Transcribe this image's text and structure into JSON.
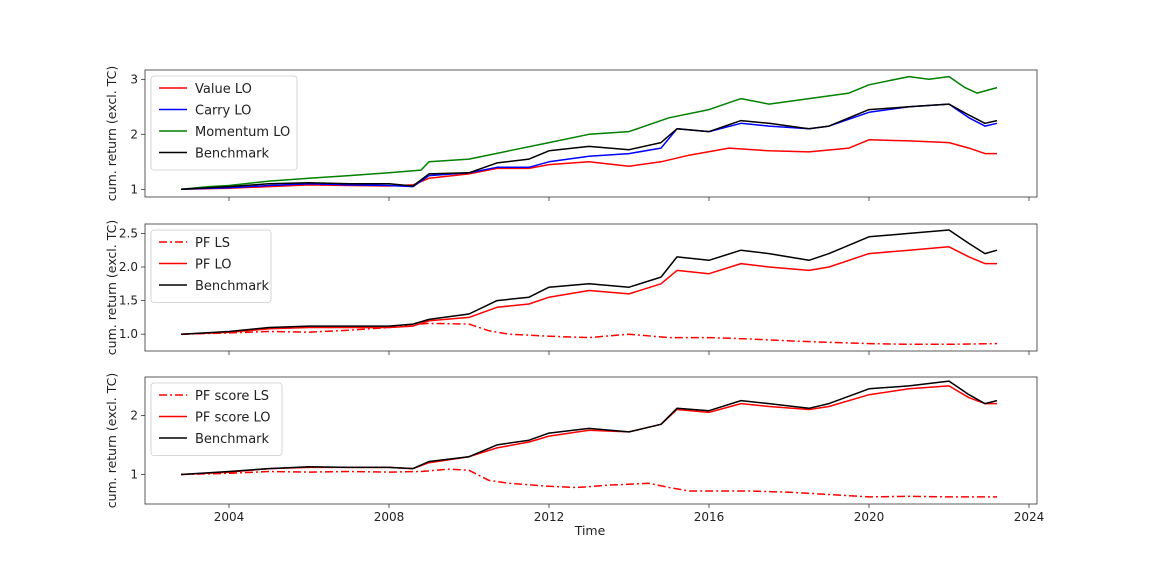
{
  "figure": {
    "xlabel": "Time",
    "x_ticks": [
      2004,
      2008,
      2012,
      2016,
      2020,
      2024
    ]
  },
  "chart_data": [
    {
      "type": "line",
      "ylabel": "cum. return (excl. TC)",
      "xlim": [
        2001.9,
        2024.2
      ],
      "ylim": [
        0.86,
        3.17
      ],
      "y_ticks": [
        1,
        2,
        3
      ],
      "y_tick_labels": [
        "1",
        "2",
        "3"
      ],
      "show_x_tick_labels": false,
      "grid": false,
      "legend": "top-left",
      "series": [
        {
          "name": "Value LO",
          "color": "#ff0000",
          "dash": "solid",
          "x": [
            2002.8,
            2004,
            2005,
            2006,
            2007,
            2008,
            2008.6,
            2009,
            2010,
            2010.7,
            2011.5,
            2012,
            2013,
            2014,
            2014.8,
            2015.5,
            2016.5,
            2017.5,
            2018.5,
            2019.5,
            2020,
            2021,
            2022,
            2022.5,
            2022.9,
            2023.2
          ],
          "y": [
            1.0,
            1.02,
            1.05,
            1.08,
            1.07,
            1.06,
            1.08,
            1.2,
            1.28,
            1.38,
            1.38,
            1.45,
            1.5,
            1.42,
            1.5,
            1.62,
            1.75,
            1.7,
            1.68,
            1.75,
            1.9,
            1.88,
            1.85,
            1.75,
            1.65,
            1.65
          ]
        },
        {
          "name": "Carry LO",
          "color": "#0000ff",
          "dash": "solid",
          "x": [
            2002.8,
            2004,
            2005,
            2006,
            2007,
            2008,
            2008.6,
            2009,
            2010,
            2010.7,
            2011.5,
            2012,
            2013,
            2014,
            2014.8,
            2015.2,
            2016,
            2016.8,
            2017.5,
            2018.5,
            2019,
            2020,
            2021,
            2022,
            2022.5,
            2022.9,
            2023.2
          ],
          "y": [
            1.0,
            1.03,
            1.07,
            1.1,
            1.08,
            1.07,
            1.05,
            1.25,
            1.3,
            1.4,
            1.4,
            1.5,
            1.6,
            1.65,
            1.75,
            2.1,
            2.05,
            2.2,
            2.15,
            2.1,
            2.15,
            2.4,
            2.5,
            2.55,
            2.3,
            2.15,
            2.2
          ]
        },
        {
          "name": "Momentum LO",
          "color": "#008000",
          "dash": "solid",
          "x": [
            2002.8,
            2003.5,
            2004,
            2005,
            2006,
            2007,
            2008,
            2008.8,
            2009,
            2010,
            2011,
            2012,
            2013,
            2014,
            2015,
            2016,
            2016.8,
            2017.5,
            2018.5,
            2019.5,
            2020,
            2021,
            2021.5,
            2022,
            2022.4,
            2022.7,
            2023.2
          ],
          "y": [
            1.0,
            1.05,
            1.07,
            1.15,
            1.2,
            1.25,
            1.3,
            1.35,
            1.5,
            1.55,
            1.7,
            1.85,
            2.0,
            2.05,
            2.3,
            2.45,
            2.65,
            2.55,
            2.65,
            2.75,
            2.9,
            3.05,
            3.0,
            3.05,
            2.85,
            2.75,
            2.85
          ]
        },
        {
          "name": "Benchmark",
          "color": "#000000",
          "dash": "solid",
          "x": [
            2002.8,
            2004,
            2005,
            2006,
            2007,
            2008,
            2008.6,
            2009,
            2010,
            2010.7,
            2011.5,
            2012,
            2013,
            2014,
            2014.8,
            2015.2,
            2016,
            2016.8,
            2017.5,
            2018.5,
            2019,
            2020,
            2021,
            2022,
            2022.5,
            2022.9,
            2023.2
          ],
          "y": [
            1.0,
            1.05,
            1.1,
            1.12,
            1.1,
            1.1,
            1.06,
            1.28,
            1.3,
            1.48,
            1.55,
            1.7,
            1.78,
            1.72,
            1.85,
            2.1,
            2.05,
            2.25,
            2.2,
            2.1,
            2.15,
            2.45,
            2.5,
            2.55,
            2.35,
            2.2,
            2.25
          ]
        }
      ]
    },
    {
      "type": "line",
      "ylabel": "cum. return (excl. TC)",
      "xlim": [
        2001.9,
        2024.2
      ],
      "ylim": [
        0.75,
        2.64
      ],
      "y_ticks": [
        1.0,
        1.5,
        2.0,
        2.5
      ],
      "y_tick_labels": [
        "1.0",
        "1.5",
        "2.0",
        "2.5"
      ],
      "show_x_tick_labels": false,
      "grid": false,
      "legend": "top-left",
      "series": [
        {
          "name": "PF LS",
          "color": "#ff0000",
          "dash": "dashdot",
          "x": [
            2002.8,
            2004,
            2005,
            2006,
            2007,
            2008,
            2008.5,
            2009,
            2010,
            2010.5,
            2011,
            2012,
            2013,
            2014,
            2015,
            2016,
            2017,
            2018,
            2019,
            2020,
            2021,
            2022,
            2023.2
          ],
          "y": [
            1.0,
            1.02,
            1.04,
            1.03,
            1.06,
            1.1,
            1.14,
            1.16,
            1.15,
            1.05,
            1.0,
            0.97,
            0.95,
            1.0,
            0.95,
            0.95,
            0.93,
            0.9,
            0.88,
            0.86,
            0.85,
            0.85,
            0.86
          ]
        },
        {
          "name": "PF LO",
          "color": "#ff0000",
          "dash": "solid",
          "x": [
            2002.8,
            2004,
            2005,
            2006,
            2007,
            2008,
            2008.6,
            2009,
            2010,
            2010.7,
            2011.5,
            2012,
            2013,
            2014,
            2014.8,
            2015.2,
            2016,
            2016.8,
            2017.5,
            2018.5,
            2019,
            2020,
            2021,
            2022,
            2022.5,
            2022.9,
            2023.2
          ],
          "y": [
            1.0,
            1.03,
            1.08,
            1.1,
            1.1,
            1.1,
            1.12,
            1.2,
            1.25,
            1.4,
            1.45,
            1.55,
            1.65,
            1.6,
            1.75,
            1.95,
            1.9,
            2.05,
            2.0,
            1.95,
            2.0,
            2.2,
            2.25,
            2.3,
            2.15,
            2.05,
            2.05
          ]
        },
        {
          "name": "Benchmark",
          "color": "#000000",
          "dash": "solid",
          "x": [
            2002.8,
            2004,
            2005,
            2006,
            2007,
            2008,
            2008.6,
            2009,
            2010,
            2010.7,
            2011.5,
            2012,
            2013,
            2014,
            2014.8,
            2015.2,
            2016,
            2016.8,
            2017.5,
            2018.5,
            2019,
            2020,
            2021,
            2022,
            2022.5,
            2022.9,
            2023.2
          ],
          "y": [
            1.0,
            1.04,
            1.1,
            1.12,
            1.12,
            1.12,
            1.15,
            1.22,
            1.3,
            1.5,
            1.55,
            1.7,
            1.75,
            1.7,
            1.85,
            2.15,
            2.1,
            2.25,
            2.2,
            2.1,
            2.2,
            2.45,
            2.5,
            2.55,
            2.35,
            2.2,
            2.25
          ]
        }
      ]
    },
    {
      "type": "line",
      "ylabel": "cum. return (excl. TC)",
      "xlabel": "Time",
      "xlim": [
        2001.9,
        2024.2
      ],
      "ylim": [
        0.5,
        2.65
      ],
      "y_ticks": [
        1,
        2
      ],
      "y_tick_labels": [
        "1",
        "2"
      ],
      "show_x_tick_labels": true,
      "grid": false,
      "legend": "top-left",
      "series": [
        {
          "name": "PF score LS",
          "color": "#ff0000",
          "dash": "dashdot",
          "x": [
            2002.8,
            2004,
            2005,
            2006,
            2007,
            2008,
            2008.8,
            2009.5,
            2010,
            2010.5,
            2011,
            2012,
            2012.7,
            2013.5,
            2014.5,
            2015,
            2015.5,
            2016.5,
            2017,
            2018,
            2019,
            2020,
            2021,
            2022,
            2023.2
          ],
          "y": [
            1.0,
            1.02,
            1.05,
            1.04,
            1.05,
            1.04,
            1.05,
            1.09,
            1.07,
            0.9,
            0.85,
            0.8,
            0.78,
            0.82,
            0.85,
            0.78,
            0.72,
            0.72,
            0.72,
            0.7,
            0.66,
            0.62,
            0.63,
            0.62,
            0.62
          ]
        },
        {
          "name": "PF score LO",
          "color": "#ff0000",
          "dash": "solid",
          "x": [
            2002.8,
            2004,
            2005,
            2006,
            2007,
            2008,
            2008.6,
            2009,
            2010,
            2010.7,
            2011.5,
            2012,
            2013,
            2014,
            2014.8,
            2015.2,
            2016,
            2016.8,
            2017.5,
            2018.5,
            2019,
            2020,
            2021,
            2022,
            2022.5,
            2022.9,
            2023.2
          ],
          "y": [
            1.0,
            1.04,
            1.1,
            1.12,
            1.12,
            1.12,
            1.1,
            1.2,
            1.3,
            1.45,
            1.55,
            1.65,
            1.75,
            1.72,
            1.85,
            2.1,
            2.05,
            2.2,
            2.15,
            2.1,
            2.15,
            2.35,
            2.45,
            2.5,
            2.3,
            2.2,
            2.2
          ]
        },
        {
          "name": "Benchmark",
          "color": "#000000",
          "dash": "solid",
          "x": [
            2002.8,
            2004,
            2005,
            2006,
            2007,
            2008,
            2008.6,
            2009,
            2010,
            2010.7,
            2011.5,
            2012,
            2013,
            2014,
            2014.8,
            2015.2,
            2016,
            2016.8,
            2017.5,
            2018.5,
            2019,
            2020,
            2021,
            2022,
            2022.5,
            2022.9,
            2023.2
          ],
          "y": [
            1.0,
            1.05,
            1.1,
            1.13,
            1.12,
            1.12,
            1.1,
            1.22,
            1.3,
            1.5,
            1.58,
            1.7,
            1.78,
            1.72,
            1.85,
            2.12,
            2.08,
            2.25,
            2.2,
            2.12,
            2.2,
            2.45,
            2.5,
            2.58,
            2.35,
            2.2,
            2.25
          ]
        }
      ]
    }
  ]
}
